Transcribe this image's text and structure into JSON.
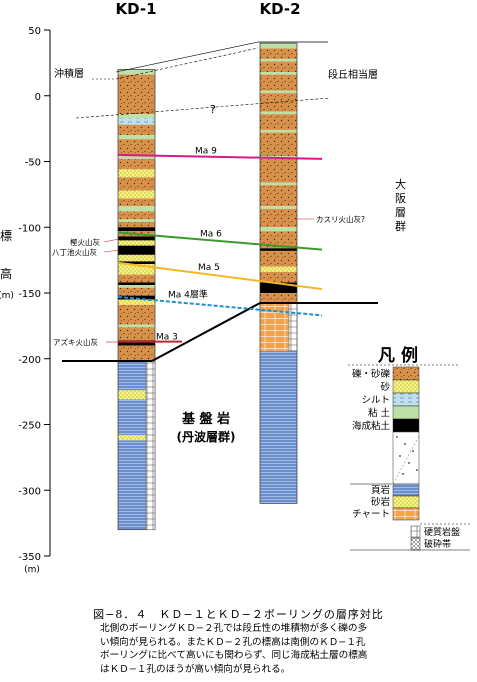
{
  "boreholes": [
    {
      "name": "KD-1",
      "top_elevation": 20,
      "basement_top": -202,
      "bottom_elevation": -330
    },
    {
      "name": "KD-2",
      "top_elevation": 40,
      "basement_top": -158,
      "bottom_elevation": -310
    }
  ],
  "axis": {
    "ticks": [
      "50",
      "0",
      "-50",
      "-100",
      "-150",
      "-200",
      "-250",
      "-300",
      "-350"
    ],
    "label_chars": [
      "標",
      "高"
    ],
    "unit": "(m)"
  },
  "units": {
    "alluvium": "沖積層",
    "terrace": "段丘相当層",
    "osaka_chars": [
      "大",
      "阪",
      "層",
      "群"
    ],
    "basement_line1": "基 盤 岩",
    "basement_line2": "(丹波層群)",
    "question": "?"
  },
  "marker_layers": [
    {
      "label": "Ma 9",
      "color": "#d6188c",
      "kd1": -45,
      "kd2": -48
    },
    {
      "label": "Ma 6",
      "color": "#3c9a2c",
      "kd1": -104,
      "kd2": -117
    },
    {
      "label": "Ma 5",
      "color": "#f2b820",
      "kd1": -127,
      "kd2": -147
    },
    {
      "label": "Ma 4層準",
      "color": "#1e8fd2",
      "kd1": -153,
      "kd2": -167
    },
    {
      "label": "Ma 3",
      "color": "#c0282c",
      "kd1": -187,
      "kd2": null
    }
  ],
  "ash_labels": {
    "kd1": [
      "樫火山灰",
      "八丁池火山灰",
      "アズキ火山灰"
    ],
    "kd2": [
      "カスリ火山灰?"
    ]
  },
  "legend": {
    "title": "凡 例",
    "sediments": [
      "礫・砂礫",
      "砂",
      "シルト",
      "粘 土",
      "海成粘土"
    ],
    "rocks": [
      "頁岩",
      "砂岩",
      "チャート"
    ],
    "features": [
      "硬質岩盤",
      "破砕帯"
    ]
  },
  "colors": {
    "gravel": "#d8914a",
    "sand": "#f7f27a",
    "silt": "#bfe0ec",
    "clay": "#bde0a6",
    "marine_clay": "#000000",
    "shale": "#6b8fcc",
    "chert": "#f2a24c"
  },
  "caption": {
    "title": "図−8．４　ＫＤ−１とＫＤ−２ボーリングの層序対比",
    "lines": [
      "北側のボーリングＫＤ−２孔では段丘性の堆積物が多く礫の多",
      "い傾向が見られる。またＫＤ−２孔の標高は南側のＫＤ−１孔",
      "ボーリングに比べて高いにも関わらず、同じ海成粘土層の標高",
      "はＫＤ−１孔のほうが高い傾向が見られる。"
    ]
  }
}
